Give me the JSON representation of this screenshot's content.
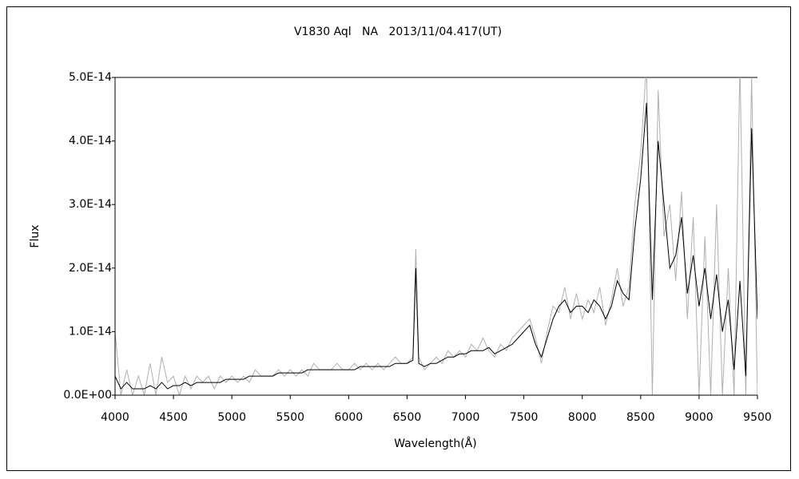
{
  "chart_data": {
    "type": "line",
    "title": "V1830 Aql   NA   2013/11/04.417(UT)",
    "x_label": "Wavelength(Å)",
    "y_label": "Flux",
    "x": [
      4000,
      4050,
      4100,
      4150,
      4200,
      4250,
      4300,
      4350,
      4400,
      4450,
      4500,
      4550,
      4600,
      4650,
      4700,
      4750,
      4800,
      4850,
      4900,
      4950,
      5000,
      5050,
      5100,
      5150,
      5200,
      5250,
      5300,
      5350,
      5400,
      5450,
      5500,
      5550,
      5600,
      5650,
      5700,
      5750,
      5800,
      5850,
      5900,
      5950,
      6000,
      6050,
      6100,
      6150,
      6200,
      6250,
      6300,
      6350,
      6400,
      6450,
      6500,
      6550,
      6575,
      6600,
      6650,
      6700,
      6750,
      6800,
      6850,
      6900,
      6950,
      7000,
      7050,
      7100,
      7150,
      7200,
      7250,
      7300,
      7350,
      7400,
      7450,
      7500,
      7550,
      7600,
      7650,
      7700,
      7750,
      7800,
      7850,
      7900,
      7950,
      8000,
      8050,
      8100,
      8150,
      8200,
      8250,
      8300,
      8350,
      8400,
      8450,
      8500,
      8550,
      8600,
      8650,
      8700,
      8750,
      8800,
      8850,
      8900,
      8950,
      9000,
      9050,
      9100,
      9150,
      9200,
      9250,
      9300,
      9350,
      9400,
      9450,
      9500
    ],
    "series": [
      {
        "color": "#b0b0b0",
        "values": [
          1e-14,
          0,
          4e-15,
          0,
          3e-15,
          0,
          5e-15,
          0,
          6e-15,
          2e-15,
          3e-15,
          0,
          3e-15,
          1e-15,
          3e-15,
          2e-15,
          3e-15,
          1e-15,
          3e-15,
          2e-15,
          3e-15,
          2e-15,
          3e-15,
          2e-15,
          4e-15,
          3e-15,
          3e-15,
          3e-15,
          4e-15,
          3e-15,
          4e-15,
          3e-15,
          4e-15,
          3e-15,
          5e-15,
          4e-15,
          4e-15,
          4e-15,
          5e-15,
          4e-15,
          4e-15,
          5e-15,
          4e-15,
          5e-15,
          4e-15,
          5e-15,
          4e-15,
          5e-15,
          6e-15,
          5e-15,
          5e-15,
          6e-15,
          2.3e-14,
          6e-15,
          4e-15,
          5e-15,
          6e-15,
          5e-15,
          7e-15,
          6e-15,
          7e-15,
          6e-15,
          8e-15,
          7e-15,
          9e-15,
          7e-15,
          6e-15,
          8e-15,
          7e-15,
          9e-15,
          1e-14,
          1.1e-14,
          1.2e-14,
          9e-15,
          5e-15,
          1e-14,
          1.4e-14,
          1.3e-14,
          1.7e-14,
          1.2e-14,
          1.6e-14,
          1.2e-14,
          1.5e-14,
          1.3e-14,
          1.7e-14,
          1.1e-14,
          1.5e-14,
          2e-14,
          1.4e-14,
          1.7e-14,
          3e-14,
          3.8e-14,
          5.2e-14,
          0,
          4.8e-14,
          2.5e-14,
          3e-14,
          1.8e-14,
          3.2e-14,
          1.2e-14,
          2.8e-14,
          0,
          2.5e-14,
          0,
          3e-14,
          0,
          2e-14,
          0,
          5.2e-14,
          0,
          5e-14,
          0
        ]
      },
      {
        "color": "#000000",
        "values": [
          3e-15,
          1e-15,
          2e-15,
          1e-15,
          1e-15,
          1e-15,
          1.5e-15,
          1e-15,
          2e-15,
          1e-15,
          1.5e-15,
          1.5e-15,
          2e-15,
          1.5e-15,
          2e-15,
          2e-15,
          2e-15,
          2e-15,
          2e-15,
          2.5e-15,
          2.5e-15,
          2.5e-15,
          2.5e-15,
          3e-15,
          3e-15,
          3e-15,
          3e-15,
          3e-15,
          3.5e-15,
          3.5e-15,
          3.5e-15,
          3.5e-15,
          3.5e-15,
          4e-15,
          4e-15,
          4e-15,
          4e-15,
          4e-15,
          4e-15,
          4e-15,
          4e-15,
          4e-15,
          4.5e-15,
          4.5e-15,
          4.5e-15,
          4.5e-15,
          4.5e-15,
          4.5e-15,
          5e-15,
          5e-15,
          5e-15,
          5.5e-15,
          2e-14,
          5e-15,
          4.5e-15,
          5e-15,
          5e-15,
          5.5e-15,
          6e-15,
          6e-15,
          6.5e-15,
          6.5e-15,
          7e-15,
          7e-15,
          7e-15,
          7.5e-15,
          6.5e-15,
          7e-15,
          7.5e-15,
          8e-15,
          9e-15,
          1e-14,
          1.1e-14,
          8e-15,
          6e-15,
          9e-15,
          1.2e-14,
          1.4e-14,
          1.5e-14,
          1.3e-14,
          1.4e-14,
          1.4e-14,
          1.3e-14,
          1.5e-14,
          1.4e-14,
          1.2e-14,
          1.4e-14,
          1.8e-14,
          1.6e-14,
          1.5e-14,
          2.6e-14,
          3.4e-14,
          4.6e-14,
          1.5e-14,
          4e-14,
          3e-14,
          2e-14,
          2.2e-14,
          2.8e-14,
          1.6e-14,
          2.2e-14,
          1.4e-14,
          2e-14,
          1.2e-14,
          1.9e-14,
          1e-14,
          1.5e-14,
          4e-15,
          1.8e-14,
          3e-15,
          4.2e-14,
          1.2e-14
        ]
      }
    ],
    "xlim": [
      4000,
      9500
    ],
    "xticks": [
      4000,
      4500,
      5000,
      5500,
      6000,
      6500,
      7000,
      7500,
      8000,
      8500,
      9000,
      9500
    ],
    "ylim": [
      0,
      5e-14
    ],
    "yticks": [
      {
        "value": 0,
        "label": "0.0E+00"
      },
      {
        "value": 1e-14,
        "label": "1.0E-14"
      },
      {
        "value": 2e-14,
        "label": "2.0E-14"
      },
      {
        "value": 3e-14,
        "label": "3.0E-14"
      },
      {
        "value": 4e-14,
        "label": "4.0E-14"
      },
      {
        "value": 5e-14,
        "label": "5.0E-14"
      }
    ],
    "grid": false
  }
}
